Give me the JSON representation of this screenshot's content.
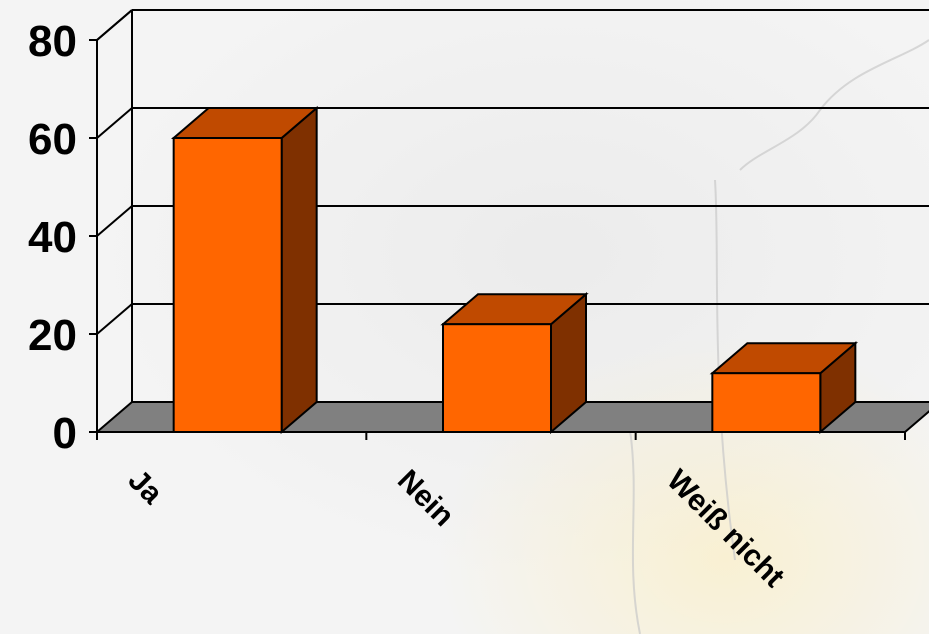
{
  "chart_data": {
    "type": "bar",
    "three_d": true,
    "categories": [
      "Ja",
      "Nein",
      "Weiß nicht"
    ],
    "values": [
      60,
      22,
      12
    ],
    "ylim": [
      0,
      80
    ],
    "yticks": [
      0,
      20,
      40,
      60,
      80
    ],
    "grid": true,
    "legend": "none",
    "colors": {
      "bar_front": "#ff6600",
      "bar_top": "#c04a00",
      "bar_side": "#7f3000",
      "floor": "#808080",
      "grid": "#000000"
    }
  }
}
